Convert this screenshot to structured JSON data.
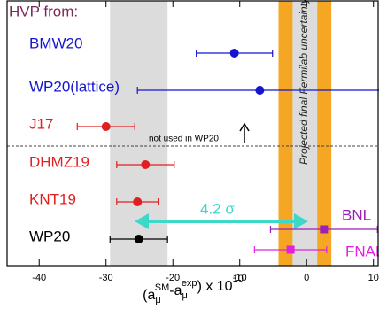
{
  "chart_data": {
    "type": "errorbar",
    "heading": "HVP from:",
    "xlim": [
      -44.8,
      10.7
    ],
    "xticks": [
      -40,
      -30,
      -20,
      -10,
      0,
      10
    ],
    "xlabel_parts": [
      {
        "text": "(a"
      },
      {
        "text": "μ",
        "shift": "sub"
      },
      {
        "text": "SM",
        "shift": "sup"
      },
      {
        "text": "-a"
      },
      {
        "text": "μ",
        "shift": "sub"
      },
      {
        "text": "exp",
        "shift": "sup"
      },
      {
        "text": ") x 10"
      },
      {
        "text": "10",
        "shift": "sup"
      }
    ],
    "bands": [
      {
        "range": [
          -29.4,
          -20.8
        ],
        "color": "#dcdcdc"
      },
      {
        "range": [
          -4.2,
          3.7
        ],
        "color": "#f5a623"
      },
      {
        "range": [
          -2.1,
          1.6
        ],
        "color": "#dcdcdc"
      }
    ],
    "points": [
      {
        "label": "BMW20",
        "color": "#1515d0",
        "marker": "circle",
        "value": -10.8,
        "error": 5.7
      },
      {
        "label": "WP20(lattice)",
        "color": "#1515d0",
        "marker": "circle",
        "value": -7.0,
        "error": 18.3
      },
      {
        "label": "J17",
        "color": "#e02020",
        "marker": "circle",
        "value": -30.0,
        "error": 4.3
      },
      {
        "label": "DHMZ19",
        "color": "#e02020",
        "marker": "circle",
        "value": -24.1,
        "error": 4.3
      },
      {
        "label": "KNT19",
        "color": "#e02020",
        "marker": "circle",
        "value": -25.3,
        "error": 3.1
      },
      {
        "label": "WP20",
        "color": "#000000",
        "marker": "circle",
        "value": -25.1,
        "error": 4.3
      },
      {
        "label": "BNL",
        "color": "#9b1fb8",
        "marker": "square",
        "value": 2.6,
        "error": 8.0
      },
      {
        "label": "FNAL",
        "color": "#e020e0",
        "marker": "square",
        "value": -2.4,
        "error": 5.4
      }
    ],
    "annotations": {
      "not_used": "not used in WP20",
      "projected": "Projected final Fermilab uncertainty",
      "tension": "4.2 σ"
    }
  }
}
